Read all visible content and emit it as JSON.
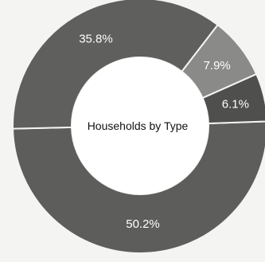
{
  "chart_data": {
    "type": "pie",
    "donut": true,
    "title": "Households by Type",
    "slices": [
      {
        "label": "50.2%",
        "value": 50.2,
        "color": "#5d5d5b"
      },
      {
        "label": "35.8%",
        "value": 35.8,
        "color": "#5f5f5d"
      },
      {
        "label": "7.9%",
        "value": 7.9,
        "color": "#8a8a88"
      },
      {
        "label": "6.1%",
        "value": 6.1,
        "color": "#4f4f4d"
      }
    ],
    "legend": "none"
  }
}
